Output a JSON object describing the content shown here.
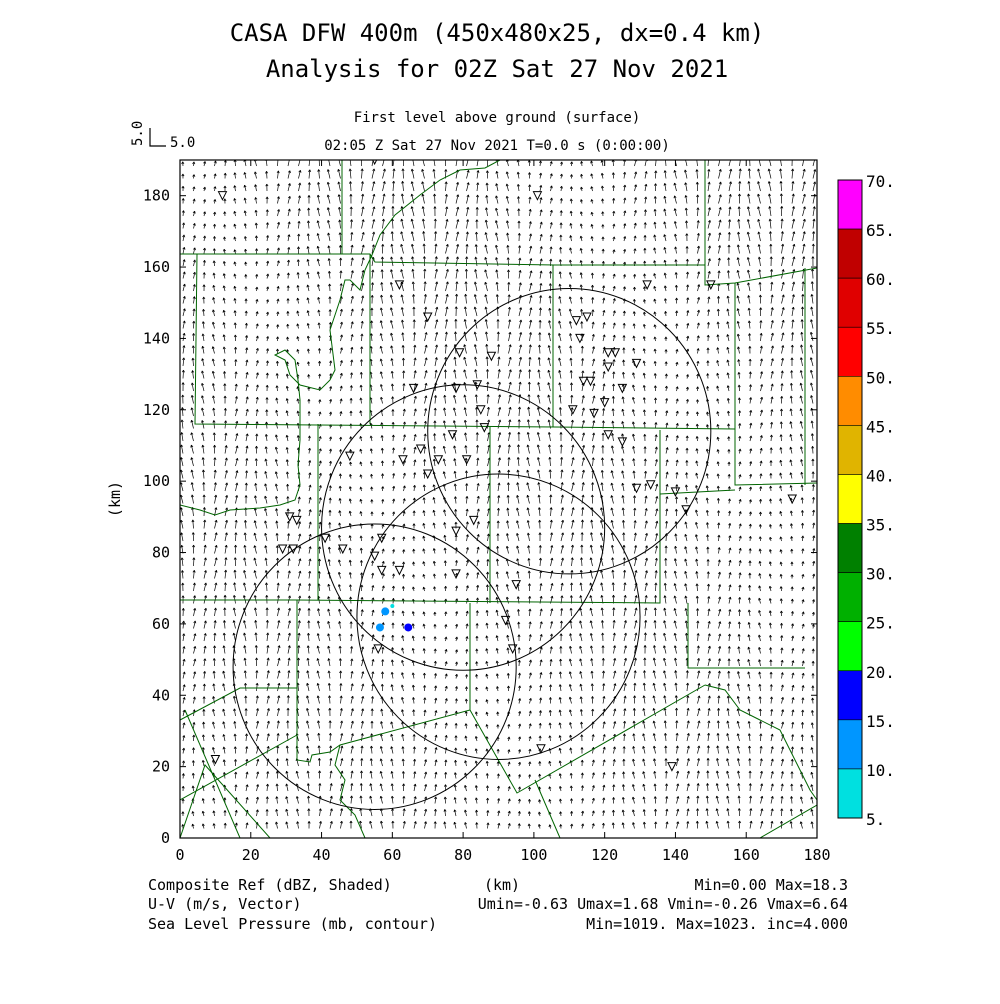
{
  "title": {
    "line1": "CASA DFW 400m (450x480x25, dx=0.4 km)",
    "line2": "Analysis for 02Z Sat 27 Nov 2021"
  },
  "subtitle": {
    "level": "First level above ground (surface)",
    "time": "02:05 Z Sat 27 Nov 2021    T=0.0 s (0:00:00)"
  },
  "vector_key": {
    "vertical": "5.0",
    "horizontal": "5.0"
  },
  "footer": {
    "left1": "Composite Ref (dBZ, Shaded)",
    "left2": "U-V (m/s, Vector)",
    "left3": "Sea Level Pressure (mb, contour)",
    "center1": "(km)",
    "right1": "Min=0.00 Max=18.3",
    "right2": "Umin=-0.63 Umax=1.68 Vmin=-0.26 Vmax=6.64",
    "right3": "Min=1019. Max=1023. inc=4.000"
  },
  "colorbar": {
    "labels": [
      "70.",
      "65.",
      "60.",
      "55.",
      "50.",
      "45.",
      "40.",
      "35.",
      "30.",
      "25.",
      "20.",
      "15.",
      "10.",
      "5."
    ],
    "colors": [
      "#ff00ff",
      "#c00000",
      "#e00000",
      "#ff0000",
      "#ff8c00",
      "#e0b400",
      "#ffff00",
      "#008000",
      "#00b000",
      "#00ff00",
      "#0000ff",
      "#0096ff",
      "#00e0e0"
    ]
  },
  "chart_data": {
    "type": "map",
    "xlabel": "(km)",
    "ylabel": "(km)",
    "xlim": [
      0,
      180
    ],
    "ylim": [
      0,
      190
    ],
    "xticks": [
      "0",
      "20",
      "40",
      "60",
      "80",
      "100",
      "120",
      "140",
      "160",
      "180"
    ],
    "yticks": [
      "0",
      "20",
      "40",
      "60",
      "80",
      "100",
      "120",
      "140",
      "160",
      "180"
    ],
    "radar_rings": [
      {
        "cx": 55,
        "cy": 48,
        "r": 40
      },
      {
        "cx": 90,
        "cy": 62,
        "r": 40
      },
      {
        "cx": 80,
        "cy": 87,
        "r": 40
      },
      {
        "cx": 110,
        "cy": 114,
        "r": 40
      }
    ],
    "stations": [
      [
        55,
        190
      ],
      [
        12,
        180
      ],
      [
        101,
        180
      ],
      [
        62,
        155
      ],
      [
        132,
        155
      ],
      [
        150,
        155
      ],
      [
        70,
        146
      ],
      [
        112,
        145
      ],
      [
        115,
        146
      ],
      [
        113,
        140
      ],
      [
        79,
        136
      ],
      [
        88,
        135
      ],
      [
        121,
        136
      ],
      [
        123,
        136
      ],
      [
        121,
        132
      ],
      [
        129,
        133
      ],
      [
        114,
        128
      ],
      [
        116,
        128
      ],
      [
        66,
        126
      ],
      [
        78,
        126
      ],
      [
        84,
        127
      ],
      [
        125,
        126
      ],
      [
        120,
        122
      ],
      [
        111,
        120
      ],
      [
        117,
        119
      ],
      [
        85,
        120
      ],
      [
        77,
        113
      ],
      [
        86,
        115
      ],
      [
        68,
        109
      ],
      [
        121,
        113
      ],
      [
        125,
        111
      ],
      [
        48,
        107
      ],
      [
        63,
        106
      ],
      [
        73,
        106
      ],
      [
        81,
        106
      ],
      [
        70,
        102
      ],
      [
        129,
        98
      ],
      [
        133,
        99
      ],
      [
        140,
        97
      ],
      [
        143,
        92
      ],
      [
        173,
        95
      ],
      [
        31,
        90
      ],
      [
        33,
        89
      ],
      [
        83,
        89
      ],
      [
        78,
        86
      ],
      [
        29,
        81
      ],
      [
        32,
        81
      ],
      [
        41,
        84
      ],
      [
        57,
        84
      ],
      [
        46,
        81
      ],
      [
        55,
        79
      ],
      [
        57,
        75
      ],
      [
        62,
        75
      ],
      [
        78,
        74
      ],
      [
        95,
        71
      ],
      [
        92,
        61
      ],
      [
        56,
        53
      ],
      [
        94,
        53
      ],
      [
        102,
        25
      ],
      [
        139,
        20
      ],
      [
        10,
        22
      ]
    ],
    "reflectivity_points": [
      [
        56.5,
        59,
        14
      ],
      [
        58,
        63.5,
        12
      ],
      [
        64.5,
        59,
        18.3
      ],
      [
        60,
        65,
        8
      ]
    ],
    "range_min": 0.0,
    "range_max": 18.3,
    "u_min": -0.63,
    "u_max": 1.68,
    "v_min": -0.26,
    "v_max": 6.64,
    "slp_min": 1019,
    "slp_max": 1023,
    "slp_inc": 4.0
  }
}
